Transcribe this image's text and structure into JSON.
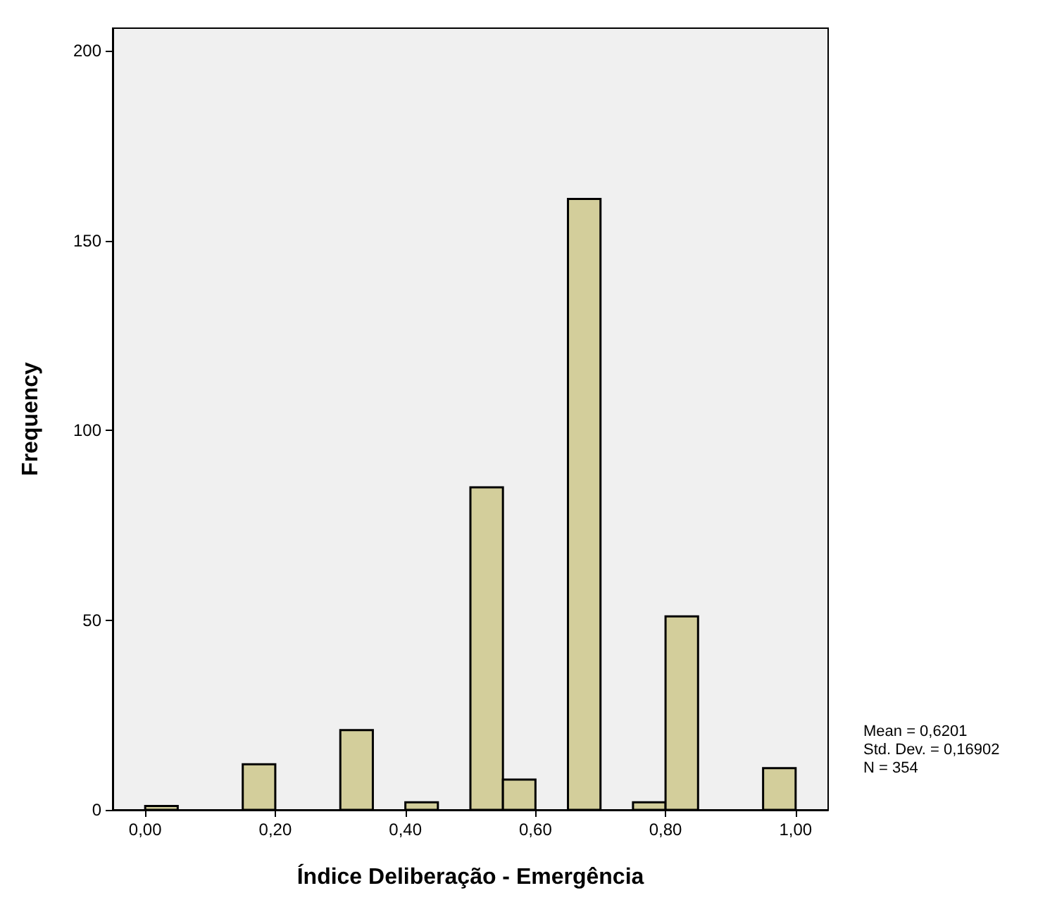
{
  "chart_data": {
    "type": "histogram",
    "xlabel": "Índice Deliberação - Emergência",
    "ylabel": "Frequency",
    "bins": [
      0,
      0.05,
      0.1,
      0.15,
      0.2,
      0.25,
      0.3,
      0.35,
      0.4,
      0.45,
      0.5,
      0.55,
      0.6,
      0.65,
      0.7,
      0.75,
      0.8,
      0.85,
      0.9,
      0.95,
      1
    ],
    "values": [
      1,
      0,
      0,
      12,
      0,
      0,
      21,
      0,
      2,
      0,
      85,
      8,
      0,
      161,
      0,
      2,
      51,
      0,
      0,
      11
    ],
    "color": "#d3ce9b",
    "xlim": [
      -0.05,
      1.05
    ],
    "xticks": [
      {
        "value": 0,
        "label": "0,00"
      },
      {
        "value": 0.2,
        "label": "0,20"
      },
      {
        "value": 0.4,
        "label": "0,40"
      },
      {
        "value": 0.6,
        "label": "0,60"
      },
      {
        "value": 0.8,
        "label": "0,80"
      },
      {
        "value": 1,
        "label": "1,00"
      }
    ],
    "ylim": [
      0,
      206
    ],
    "yticks": [
      0,
      50,
      100,
      150,
      200
    ],
    "grid": false,
    "annotations": [
      "Mean = 0,6201",
      "Std. Dev. = 0,16902",
      "N = 354"
    ]
  }
}
